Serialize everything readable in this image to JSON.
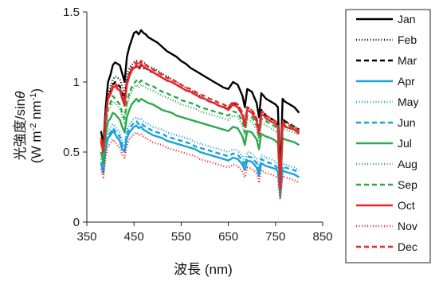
{
  "chart_data": {
    "type": "line",
    "title": "",
    "xlabel": "波長 (nm)",
    "ylabel_line1": "光強度/sin",
    "ylabel_theta": "θ",
    "ylabel_line2": "(W m",
    "ylabel_sup1": "-2",
    "ylabel_mid": " nm",
    "ylabel_sup2": "-1",
    "ylabel_end": ")",
    "xlim": [
      350,
      850
    ],
    "ylim": [
      0,
      1.5
    ],
    "xticks": [
      350,
      450,
      550,
      650,
      750,
      850
    ],
    "yticks": [
      0,
      0.5,
      1,
      1.5
    ],
    "xtick_labels": [
      "350",
      "450",
      "550",
      "650",
      "750",
      "850"
    ],
    "ytick_labels": [
      "0",
      "0.5",
      "1",
      "1.5"
    ],
    "grid": false,
    "legend_position": "right",
    "x": [
      380,
      385,
      390,
      395,
      400,
      405,
      410,
      415,
      420,
      425,
      430,
      435,
      440,
      445,
      450,
      455,
      460,
      465,
      470,
      475,
      480,
      490,
      500,
      510,
      520,
      530,
      540,
      550,
      560,
      570,
      580,
      590,
      600,
      610,
      620,
      630,
      640,
      650,
      660,
      670,
      680,
      685,
      690,
      700,
      710,
      715,
      720,
      725,
      730,
      740,
      750,
      755,
      760,
      765,
      770,
      780,
      790,
      800
    ],
    "series": [
      {
        "name": "Jan",
        "color": "#000000",
        "dash": "solid",
        "values": [
          0.65,
          0.55,
          0.82,
          1.0,
          1.05,
          1.12,
          1.14,
          1.13,
          1.12,
          1.06,
          1.0,
          1.18,
          1.25,
          1.3,
          1.35,
          1.36,
          1.34,
          1.37,
          1.35,
          1.34,
          1.32,
          1.3,
          1.28,
          1.25,
          1.22,
          1.2,
          1.18,
          1.15,
          1.13,
          1.1,
          1.08,
          1.06,
          1.04,
          1.02,
          1.0,
          0.98,
          0.96,
          0.95,
          1.0,
          0.98,
          0.9,
          0.82,
          0.95,
          0.93,
          0.85,
          0.75,
          0.92,
          0.9,
          0.88,
          0.86,
          0.84,
          0.82,
          0.3,
          0.88,
          0.86,
          0.84,
          0.82,
          0.78
        ]
      },
      {
        "name": "Feb",
        "color": "#000000",
        "dash": "1,2.5",
        "values": [
          0.6,
          0.5,
          0.75,
          0.92,
          0.96,
          1.02,
          1.04,
          1.03,
          1.02,
          0.97,
          0.92,
          1.06,
          1.1,
          1.12,
          1.14,
          1.15,
          1.13,
          1.15,
          1.14,
          1.13,
          1.11,
          1.1,
          1.08,
          1.06,
          1.04,
          1.02,
          1.0,
          0.98,
          0.96,
          0.94,
          0.92,
          0.9,
          0.88,
          0.86,
          0.85,
          0.83,
          0.82,
          0.81,
          0.85,
          0.84,
          0.77,
          0.7,
          0.82,
          0.8,
          0.74,
          0.65,
          0.8,
          0.78,
          0.76,
          0.74,
          0.72,
          0.7,
          0.25,
          0.74,
          0.72,
          0.7,
          0.68,
          0.66
        ]
      },
      {
        "name": "Mar",
        "color": "#000000",
        "dash": "6,4",
        "values": [
          0.58,
          0.5,
          0.75,
          0.9,
          0.93,
          0.98,
          1.0,
          0.98,
          0.97,
          0.92,
          0.88,
          1.0,
          1.06,
          1.08,
          1.1,
          1.11,
          1.09,
          1.12,
          1.1,
          1.1,
          1.08,
          1.07,
          1.05,
          1.03,
          1.01,
          1.0,
          0.98,
          0.96,
          0.94,
          0.93,
          0.91,
          0.89,
          0.88,
          0.86,
          0.85,
          0.83,
          0.82,
          0.81,
          0.85,
          0.84,
          0.77,
          0.7,
          0.82,
          0.8,
          0.74,
          0.65,
          0.8,
          0.78,
          0.76,
          0.74,
          0.72,
          0.7,
          0.25,
          0.74,
          0.72,
          0.7,
          0.68,
          0.66
        ]
      },
      {
        "name": "Apr",
        "color": "#1ba1dc",
        "dash": "solid",
        "values": [
          0.42,
          0.35,
          0.52,
          0.6,
          0.62,
          0.65,
          0.63,
          0.6,
          0.58,
          0.52,
          0.5,
          0.6,
          0.64,
          0.66,
          0.68,
          0.69,
          0.67,
          0.68,
          0.66,
          0.65,
          0.64,
          0.62,
          0.61,
          0.6,
          0.58,
          0.57,
          0.56,
          0.55,
          0.54,
          0.53,
          0.52,
          0.5,
          0.49,
          0.48,
          0.47,
          0.46,
          0.45,
          0.44,
          0.46,
          0.45,
          0.41,
          0.37,
          0.44,
          0.43,
          0.39,
          0.33,
          0.42,
          0.41,
          0.4,
          0.39,
          0.38,
          0.36,
          0.18,
          0.37,
          0.36,
          0.35,
          0.34,
          0.32
        ]
      },
      {
        "name": "May",
        "color": "#1ba1dc",
        "dash": "1,2.5",
        "values": [
          0.45,
          0.38,
          0.56,
          0.65,
          0.67,
          0.7,
          0.68,
          0.66,
          0.64,
          0.58,
          0.55,
          0.66,
          0.7,
          0.72,
          0.74,
          0.75,
          0.73,
          0.74,
          0.72,
          0.71,
          0.7,
          0.68,
          0.67,
          0.66,
          0.64,
          0.63,
          0.62,
          0.61,
          0.6,
          0.59,
          0.57,
          0.56,
          0.55,
          0.54,
          0.53,
          0.52,
          0.51,
          0.5,
          0.52,
          0.51,
          0.47,
          0.42,
          0.5,
          0.49,
          0.45,
          0.38,
          0.48,
          0.47,
          0.46,
          0.45,
          0.43,
          0.41,
          0.2,
          0.42,
          0.41,
          0.4,
          0.39,
          0.37
        ]
      },
      {
        "name": "Jun",
        "color": "#1ba1dc",
        "dash": "6,4",
        "values": [
          0.43,
          0.36,
          0.54,
          0.62,
          0.64,
          0.67,
          0.65,
          0.63,
          0.61,
          0.55,
          0.52,
          0.63,
          0.67,
          0.69,
          0.71,
          0.72,
          0.7,
          0.71,
          0.69,
          0.68,
          0.67,
          0.65,
          0.64,
          0.63,
          0.61,
          0.6,
          0.59,
          0.58,
          0.57,
          0.56,
          0.54,
          0.53,
          0.52,
          0.51,
          0.5,
          0.49,
          0.48,
          0.47,
          0.49,
          0.48,
          0.44,
          0.4,
          0.47,
          0.46,
          0.42,
          0.36,
          0.45,
          0.44,
          0.43,
          0.42,
          0.4,
          0.38,
          0.19,
          0.4,
          0.39,
          0.38,
          0.37,
          0.35
        ]
      },
      {
        "name": "Jul",
        "color": "#2fa84f",
        "dash": "solid",
        "values": [
          0.5,
          0.42,
          0.62,
          0.72,
          0.74,
          0.78,
          0.77,
          0.75,
          0.73,
          0.68,
          0.64,
          0.75,
          0.8,
          0.84,
          0.86,
          0.88,
          0.86,
          0.88,
          0.87,
          0.86,
          0.85,
          0.84,
          0.82,
          0.8,
          0.79,
          0.78,
          0.76,
          0.75,
          0.74,
          0.73,
          0.72,
          0.71,
          0.7,
          0.69,
          0.68,
          0.67,
          0.66,
          0.65,
          0.68,
          0.67,
          0.61,
          0.55,
          0.65,
          0.64,
          0.59,
          0.52,
          0.63,
          0.62,
          0.61,
          0.6,
          0.58,
          0.56,
          0.22,
          0.6,
          0.59,
          0.58,
          0.57,
          0.55
        ]
      },
      {
        "name": "Aug",
        "color": "#2fa84f",
        "dash": "1,2.5",
        "values": [
          0.55,
          0.47,
          0.68,
          0.8,
          0.82,
          0.86,
          0.85,
          0.83,
          0.81,
          0.75,
          0.71,
          0.83,
          0.89,
          0.93,
          0.96,
          0.98,
          0.96,
          0.98,
          0.97,
          0.96,
          0.95,
          0.94,
          0.92,
          0.9,
          0.89,
          0.87,
          0.86,
          0.84,
          0.83,
          0.82,
          0.81,
          0.79,
          0.78,
          0.77,
          0.76,
          0.75,
          0.74,
          0.73,
          0.76,
          0.75,
          0.69,
          0.62,
          0.73,
          0.72,
          0.66,
          0.58,
          0.71,
          0.7,
          0.69,
          0.67,
          0.65,
          0.63,
          0.24,
          0.67,
          0.66,
          0.65,
          0.64,
          0.62
        ]
      },
      {
        "name": "Sep",
        "color": "#2fa84f",
        "dash": "6,4",
        "values": [
          0.57,
          0.48,
          0.7,
          0.82,
          0.85,
          0.9,
          0.88,
          0.86,
          0.84,
          0.78,
          0.74,
          0.86,
          0.92,
          0.96,
          0.99,
          1.01,
          0.99,
          1.01,
          1.0,
          0.99,
          0.98,
          0.97,
          0.95,
          0.93,
          0.92,
          0.9,
          0.89,
          0.87,
          0.86,
          0.85,
          0.84,
          0.82,
          0.81,
          0.8,
          0.79,
          0.78,
          0.77,
          0.76,
          0.79,
          0.78,
          0.72,
          0.64,
          0.76,
          0.75,
          0.69,
          0.6,
          0.74,
          0.73,
          0.72,
          0.7,
          0.68,
          0.66,
          0.25,
          0.7,
          0.69,
          0.68,
          0.67,
          0.64
        ]
      },
      {
        "name": "Oct",
        "color": "#e8262a",
        "dash": "solid",
        "values": [
          0.58,
          0.5,
          0.74,
          0.88,
          0.91,
          0.96,
          0.97,
          0.95,
          0.94,
          0.88,
          0.83,
          0.98,
          1.04,
          1.08,
          1.1,
          1.12,
          1.1,
          1.13,
          1.11,
          1.1,
          1.09,
          1.07,
          1.05,
          1.03,
          1.01,
          1.0,
          0.98,
          0.96,
          0.94,
          0.93,
          0.91,
          0.89,
          0.88,
          0.86,
          0.85,
          0.83,
          0.82,
          0.8,
          0.84,
          0.82,
          0.76,
          0.68,
          0.8,
          0.78,
          0.72,
          0.63,
          0.77,
          0.76,
          0.74,
          0.72,
          0.7,
          0.68,
          0.24,
          0.7,
          0.68,
          0.67,
          0.66,
          0.63
        ]
      },
      {
        "name": "Nov",
        "color": "#e8262a",
        "dash": "1,2.5",
        "values": [
          0.38,
          0.32,
          0.47,
          0.54,
          0.56,
          0.59,
          0.57,
          0.55,
          0.53,
          0.48,
          0.46,
          0.55,
          0.59,
          0.61,
          0.63,
          0.64,
          0.62,
          0.63,
          0.61,
          0.6,
          0.59,
          0.57,
          0.56,
          0.55,
          0.53,
          0.52,
          0.51,
          0.5,
          0.49,
          0.48,
          0.47,
          0.45,
          0.44,
          0.43,
          0.42,
          0.41,
          0.4,
          0.39,
          0.41,
          0.4,
          0.36,
          0.32,
          0.39,
          0.38,
          0.35,
          0.29,
          0.37,
          0.36,
          0.35,
          0.34,
          0.33,
          0.31,
          0.17,
          0.33,
          0.32,
          0.31,
          0.3,
          0.28
        ]
      },
      {
        "name": "Dec",
        "color": "#e8262a",
        "dash": "6,4",
        "values": [
          0.6,
          0.52,
          0.76,
          0.9,
          0.93,
          0.98,
          0.99,
          0.97,
          0.96,
          0.9,
          0.85,
          1.0,
          1.06,
          1.1,
          1.12,
          1.14,
          1.12,
          1.15,
          1.13,
          1.12,
          1.11,
          1.09,
          1.07,
          1.05,
          1.03,
          1.02,
          1.0,
          0.98,
          0.96,
          0.95,
          0.93,
          0.91,
          0.9,
          0.88,
          0.87,
          0.85,
          0.84,
          0.82,
          0.86,
          0.84,
          0.78,
          0.7,
          0.82,
          0.8,
          0.74,
          0.65,
          0.79,
          0.78,
          0.76,
          0.74,
          0.72,
          0.7,
          0.25,
          0.72,
          0.7,
          0.69,
          0.68,
          0.65
        ]
      }
    ]
  }
}
